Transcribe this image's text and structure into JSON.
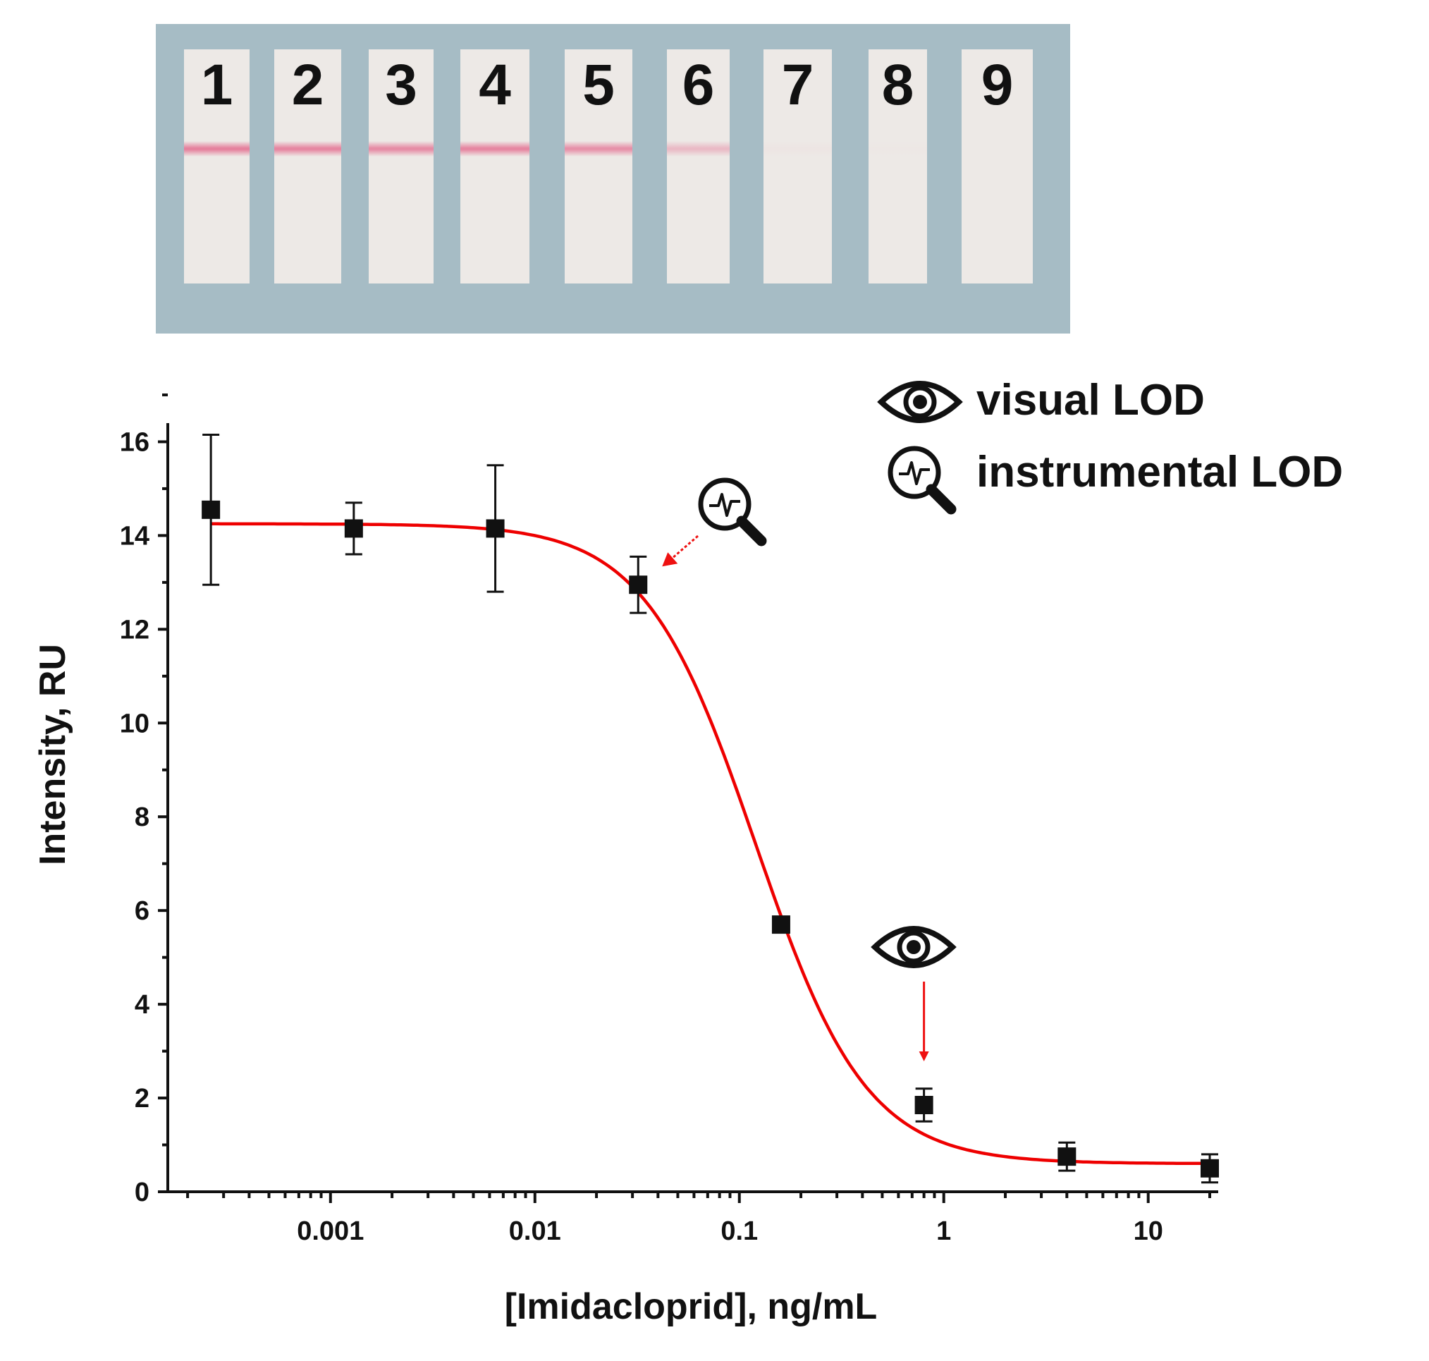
{
  "strips": {
    "labels": [
      "1",
      "2",
      "3",
      "4",
      "5",
      "6",
      "7",
      "8",
      "9"
    ],
    "line_color": "#e46f91",
    "line_intensity": [
      1.0,
      0.95,
      0.9,
      0.95,
      0.85,
      0.45,
      0.04,
      0.02,
      0.0
    ]
  },
  "legend": {
    "visual": {
      "icon": "eye-icon",
      "label": "visual LOD"
    },
    "instrumental": {
      "icon": "magnifier-signal-icon",
      "label": "instrumental LOD"
    }
  },
  "chart_data": {
    "type": "scatter",
    "xlabel": "[Imidacloprid], ng/mL",
    "ylabel": "Intensity, RU",
    "xscale": "log",
    "xlim": [
      0.00016,
      22
    ],
    "ylim": [
      0,
      17
    ],
    "xticks": [
      0.001,
      0.01,
      0.1,
      1,
      10
    ],
    "xtick_labels": [
      "0.001",
      "0.01",
      "0.1",
      "1",
      "10"
    ],
    "yticks": [
      0,
      2,
      4,
      6,
      8,
      10,
      12,
      14,
      16
    ],
    "ytick_labels": [
      "0",
      "2",
      "4",
      "6",
      "8",
      "10",
      "12",
      "14",
      "16"
    ],
    "series": [
      {
        "points": [
          {
            "x": 0.00026,
            "y": 14.55,
            "err": 1.6
          },
          {
            "x": 0.0013,
            "y": 14.15,
            "err": 0.55
          },
          {
            "x": 0.0064,
            "y": 14.15,
            "err": 1.35
          },
          {
            "x": 0.032,
            "y": 12.95,
            "err": 0.6
          },
          {
            "x": 0.16,
            "y": 5.7,
            "err": 0.0
          },
          {
            "x": 0.8,
            "y": 1.85,
            "err": 0.35
          },
          {
            "x": 4.0,
            "y": 0.75,
            "err": 0.3
          },
          {
            "x": 20,
            "y": 0.5,
            "err": 0.3
          }
        ]
      }
    ],
    "fit": {
      "model": "4-parameter logistic",
      "top": 14.25,
      "bottom": 0.6,
      "ic50": 0.12,
      "slope": 1.6,
      "x_range": [
        0.00026,
        20
      ],
      "color": "#ee0000"
    },
    "annotations": [
      {
        "icon": "magnifier-signal-icon",
        "meaning": "instrumental LOD",
        "x": 0.032,
        "y": 12.95
      },
      {
        "icon": "eye-icon",
        "meaning": "visual LOD",
        "x": 0.8,
        "y": 1.85
      }
    ],
    "grid": false
  }
}
